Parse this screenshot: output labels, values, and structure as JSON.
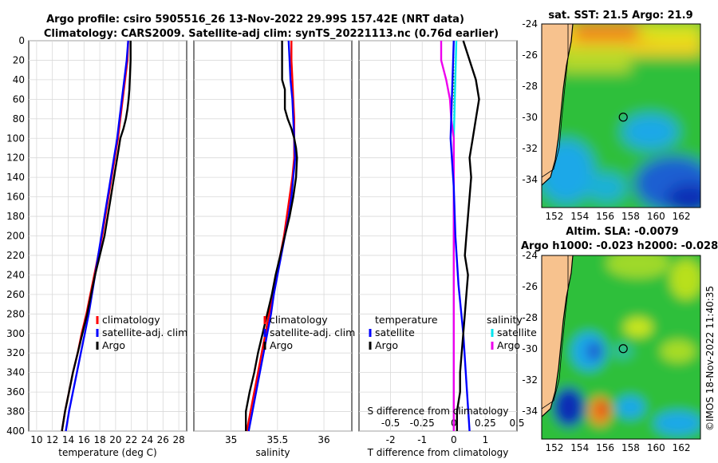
{
  "title": {
    "line1": "Argo profile: csiro 5905516_26 13-Nov-2022 29.99S 157.42E (NRT data)",
    "line2": "Climatology: CARS2009. Satellite-adj clim: synTS_20221113.nc (0.76d earlier)"
  },
  "colors": {
    "climatology": "#ff0000",
    "satellite": "#0000ff",
    "argo": "#000000",
    "salinity_satellite": "#00e5ee",
    "salinity_argo": "#ee00ee",
    "land": "#f7c28e"
  },
  "chart_data": [
    {
      "type": "line",
      "id": "temperature-profile",
      "xlabel": "temperature (deg C)",
      "ylabel": "",
      "xlim": [
        9,
        29
      ],
      "ylim": [
        0,
        400
      ],
      "y_reversed": true,
      "xticks": [
        "10",
        "12",
        "14",
        "16",
        "18",
        "20",
        "22",
        "24",
        "26",
        "28"
      ],
      "yticks": [
        "0",
        "20",
        "40",
        "60",
        "80",
        "100",
        "120",
        "140",
        "160",
        "180",
        "200",
        "220",
        "240",
        "260",
        "280",
        "300",
        "320",
        "340",
        "360",
        "380",
        "400"
      ],
      "legend": [
        "climatology",
        "satellite-adj. clim",
        "Argo"
      ],
      "series": [
        {
          "name": "climatology",
          "depth": [
            0,
            20,
            40,
            60,
            80,
            100,
            120,
            140,
            160,
            180,
            200,
            220,
            240,
            260,
            280,
            300,
            320,
            340,
            360,
            380,
            400
          ],
          "values": [
            21.6,
            21.5,
            21.2,
            20.9,
            20.6,
            20.3,
            19.9,
            19.5,
            19.1,
            18.7,
            18.3,
            17.8,
            17.3,
            16.8,
            16.3,
            15.7,
            15.2,
            14.6,
            14.1,
            13.6,
            13.2
          ]
        },
        {
          "name": "satellite-adj. clim",
          "depth": [
            0,
            20,
            40,
            60,
            80,
            100,
            120,
            140,
            160,
            180,
            200,
            220,
            240,
            260,
            280,
            300,
            320,
            340,
            360,
            380,
            400
          ],
          "values": [
            21.6,
            21.4,
            21.1,
            20.8,
            20.5,
            20.2,
            19.8,
            19.4,
            19.0,
            18.6,
            18.2,
            17.8,
            17.4,
            17.0,
            16.6,
            16.1,
            15.6,
            15.1,
            14.6,
            14.1,
            13.7
          ]
        },
        {
          "name": "Argo",
          "depth": [
            0,
            10,
            20,
            30,
            40,
            50,
            60,
            70,
            80,
            90,
            100,
            110,
            120,
            140,
            160,
            180,
            200,
            220,
            240,
            260,
            280,
            300,
            320,
            340,
            360,
            380,
            400
          ],
          "values": [
            21.9,
            21.9,
            21.9,
            21.85,
            21.8,
            21.75,
            21.65,
            21.5,
            21.3,
            21.0,
            20.6,
            20.4,
            20.2,
            19.8,
            19.4,
            19.0,
            18.6,
            18.0,
            17.4,
            16.9,
            16.4,
            15.8,
            15.2,
            14.6,
            14.1,
            13.6,
            13.2
          ]
        }
      ]
    },
    {
      "type": "line",
      "id": "salinity-profile",
      "xlabel": "salinity",
      "ylabel": "",
      "xlim": [
        34.6,
        36.3
      ],
      "ylim": [
        0,
        400
      ],
      "y_reversed": true,
      "xticks": [
        "35",
        "35.5",
        "36"
      ],
      "legend": [
        "climatology",
        "satellite-adj. clim",
        "Argo"
      ],
      "series": [
        {
          "name": "climatology",
          "depth": [
            0,
            20,
            40,
            60,
            80,
            100,
            120,
            140,
            160,
            180,
            200,
            220,
            240,
            260,
            280,
            300,
            320,
            340,
            360,
            380,
            400
          ],
          "values": [
            35.65,
            35.65,
            35.66,
            35.67,
            35.68,
            35.68,
            35.68,
            35.66,
            35.63,
            35.6,
            35.57,
            35.53,
            35.49,
            35.45,
            35.41,
            35.37,
            35.33,
            35.29,
            35.25,
            35.21,
            35.17
          ]
        },
        {
          "name": "satellite-adj. clim",
          "depth": [
            0,
            20,
            40,
            60,
            80,
            100,
            120,
            140,
            160,
            180,
            200,
            220,
            240,
            260,
            280,
            300,
            320,
            340,
            360,
            380,
            400
          ],
          "values": [
            35.62,
            35.63,
            35.64,
            35.66,
            35.67,
            35.68,
            35.69,
            35.67,
            35.65,
            35.62,
            35.58,
            35.54,
            35.5,
            35.46,
            35.43,
            35.39,
            35.35,
            35.31,
            35.27,
            35.23,
            35.19
          ]
        },
        {
          "name": "Argo",
          "depth": [
            0,
            10,
            20,
            30,
            40,
            50,
            60,
            70,
            80,
            90,
            100,
            110,
            120,
            140,
            160,
            180,
            200,
            220,
            240,
            260,
            280,
            300,
            320,
            340,
            360,
            380,
            400
          ],
          "values": [
            35.55,
            35.55,
            35.55,
            35.55,
            35.55,
            35.58,
            35.58,
            35.58,
            35.61,
            35.65,
            35.68,
            35.7,
            35.71,
            35.7,
            35.67,
            35.63,
            35.58,
            35.53,
            35.48,
            35.44,
            35.39,
            35.34,
            35.29,
            35.25,
            35.2,
            35.16,
            35.16
          ]
        }
      ]
    },
    {
      "type": "line",
      "id": "difference-profile",
      "xlabel": "T difference from climatology",
      "xlabel_top": "S difference from climatology",
      "ylim": [
        0,
        400
      ],
      "y_reversed": true,
      "xlim": [
        -3,
        2
      ],
      "xticks": [
        "-2",
        "-1",
        "0",
        "1"
      ],
      "xticks_top": [
        "-0.5",
        "-0.25",
        "0",
        "0.25",
        "0.5"
      ],
      "legend_temperature_title": "temperature",
      "legend_salinity_title": "salinity",
      "legend": [
        "satellite",
        "Argo",
        "satellite",
        "Argo"
      ],
      "series": [
        {
          "name": "temperature satellite",
          "depth": [
            0,
            50,
            100,
            150,
            200,
            250,
            300,
            350,
            400
          ],
          "values": [
            0.0,
            -0.05,
            -0.1,
            0.0,
            0.05,
            0.15,
            0.3,
            0.4,
            0.5
          ]
        },
        {
          "name": "temperature Argo",
          "depth": [
            0,
            20,
            40,
            60,
            80,
            100,
            120,
            140,
            160,
            180,
            200,
            220,
            240,
            260,
            280,
            300,
            320,
            340,
            360,
            380,
            400
          ],
          "values": [
            0.3,
            0.5,
            0.7,
            0.8,
            0.7,
            0.6,
            0.5,
            0.55,
            0.5,
            0.45,
            0.4,
            0.35,
            0.45,
            0.4,
            0.35,
            0.3,
            0.25,
            0.2,
            0.2,
            0.1,
            0.1
          ]
        },
        {
          "name": "salinity satellite",
          "depth": [
            0,
            100,
            200,
            300,
            400
          ],
          "values": [
            0.02,
            0.0,
            0.0,
            0.0,
            0.0
          ]
        },
        {
          "name": "salinity Argo",
          "depth": [
            0,
            20,
            40,
            60,
            80,
            100,
            150,
            200,
            250,
            300,
            350,
            400
          ],
          "values": [
            -0.1,
            -0.1,
            -0.06,
            -0.03,
            -0.02,
            0.0,
            0.0,
            0.0,
            0.0,
            0.0,
            0.0,
            0.0
          ]
        }
      ]
    },
    {
      "type": "heatmap",
      "id": "sst-map",
      "title": "sat. SST: 21.5 Argo: 21.9",
      "xticks": [
        "152",
        "154",
        "156",
        "158",
        "160",
        "162"
      ],
      "yticks": [
        "-24",
        "-26",
        "-28",
        "-30",
        "-32",
        "-34"
      ],
      "xlim": [
        151,
        163.5
      ],
      "ylim": [
        -35.8,
        -24
      ]
    },
    {
      "type": "heatmap",
      "id": "sla-map",
      "title_line1": "Altim. SLA: -0.0079",
      "title_line2": "Argo h1000: -0.023 h2000: -0.028",
      "xticks": [
        "152",
        "154",
        "156",
        "158",
        "160",
        "162"
      ],
      "yticks": [
        "-24",
        "-26",
        "-28",
        "-30",
        "-32",
        "-34"
      ],
      "xlim": [
        151,
        163.5
      ],
      "ylim": [
        -35.8,
        -24
      ]
    }
  ],
  "argo_position": {
    "lon": 157.42,
    "lat": -29.99
  },
  "stamp": "©IMOS 18-Nov-2022 11:40:35"
}
